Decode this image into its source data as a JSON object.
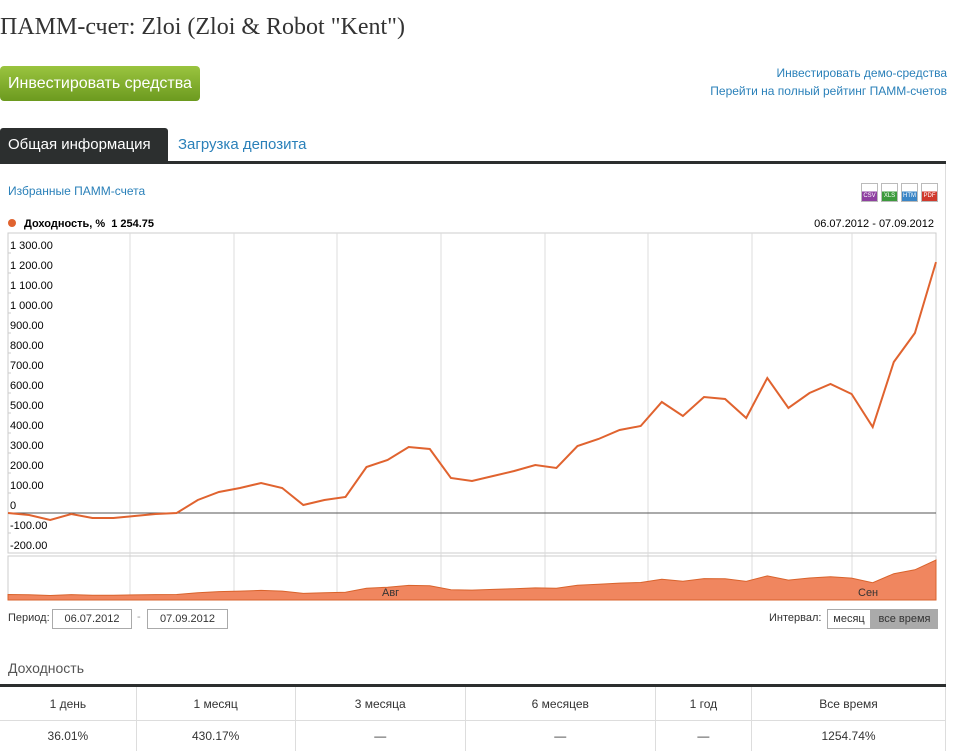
{
  "header": {
    "title": "ПАММ-счет: Zloi (Zloi & Robot \"Kent\")",
    "button": "Инвестировать средства",
    "links": [
      "Инвестировать демо-средства",
      "Перейти на полный рейтинг ПАММ-счетов"
    ]
  },
  "tabs": [
    "Общая информация",
    "Загрузка депозита"
  ],
  "favorites_link": "Избранные ПАММ-счета",
  "export_formats": [
    "CSV",
    "XLS",
    "HTM",
    "PDF"
  ],
  "chart_data": {
    "type": "line",
    "series": [
      {
        "name": "Доходность, %",
        "color": "#e0632f",
        "values": [
          0,
          -10,
          -35,
          -5,
          -25,
          -25,
          -15,
          -5,
          0,
          65,
          105,
          125,
          150,
          125,
          40,
          65,
          80,
          230,
          265,
          330,
          320,
          175,
          160,
          185,
          210,
          240,
          225,
          335,
          370,
          415,
          435,
          555,
          485,
          580,
          570,
          475,
          675,
          525,
          600,
          645,
          595,
          430,
          755,
          900,
          1254.75
        ]
      }
    ],
    "legend_value": "1 254.75",
    "date_range": "06.07.2012 - 07.09.2012",
    "ylim": [
      -200,
      1400
    ],
    "yticks": [
      {
        "value": -200,
        "label": "-200.00"
      },
      {
        "value": -100,
        "label": "-100.00"
      },
      0,
      {
        "value": 100,
        "label": "100.00"
      },
      {
        "value": 200,
        "label": "200.00"
      },
      {
        "value": 300,
        "label": "300.00"
      },
      {
        "value": 400,
        "label": "400.00"
      },
      {
        "value": 500,
        "label": "500.00"
      },
      {
        "value": 600,
        "label": "600.00"
      },
      {
        "value": 700,
        "label": "700.00"
      },
      {
        "value": 800,
        "label": "800.00"
      },
      {
        "value": 900,
        "label": "900.00"
      },
      {
        "value": 1000,
        "label": "1 000.00"
      },
      {
        "value": 1100,
        "label": "1 100.00"
      },
      {
        "value": 1200,
        "label": "1 200.00"
      },
      {
        "value": 1300,
        "label": "1 300.00"
      }
    ],
    "navigator_labels": [
      "Авг",
      "Сен"
    ],
    "navigator_color": "#f0865f"
  },
  "period": {
    "label": "Период:",
    "from": "06.07.2012",
    "separator": "-",
    "to": "07.09.2012"
  },
  "interval": {
    "label": "Интервал:",
    "options": [
      "месяц",
      "все время"
    ]
  },
  "returns": {
    "title": "Доходность",
    "columns": [
      "1 день",
      "1 месяц",
      "3 месяца",
      "6 месяцев",
      "1 год",
      "Все время"
    ],
    "values": [
      "36.01%",
      "430.17%",
      "—",
      "—",
      "—",
      "1254.74%"
    ]
  }
}
